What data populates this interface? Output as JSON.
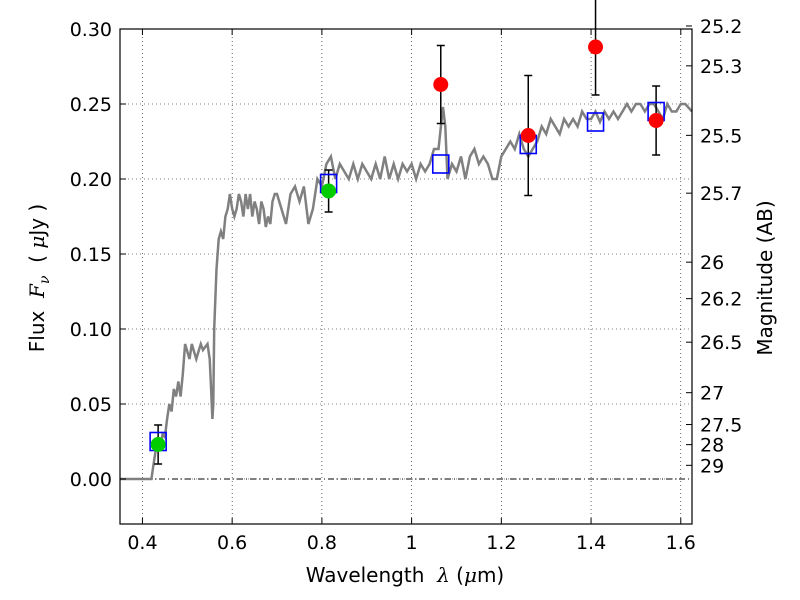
{
  "chart_data": {
    "type": "line",
    "xlabel_parts": [
      "Wavelength  ",
      "λ",
      " (",
      "μ",
      "m)"
    ],
    "ylabel_parts": [
      "Flux  ",
      "F",
      "ν",
      "  ( ",
      "μ",
      "Jy )"
    ],
    "y2label": "Magnitude (AB)",
    "xlim": [
      0.35,
      1.625
    ],
    "ylim": [
      -0.03,
      0.3
    ],
    "x_ticks": [
      0.4,
      0.6,
      0.8,
      1.0,
      1.2,
      1.4,
      1.6
    ],
    "x_tick_labels": [
      "0.4",
      "0.6",
      "0.8",
      "1",
      "1.2",
      "1.4",
      "1.6"
    ],
    "y_ticks": [
      0.0,
      0.05,
      0.1,
      0.15,
      0.2,
      0.25,
      0.3
    ],
    "y_tick_labels": [
      "0.00",
      "0.05",
      "0.10",
      "0.15",
      "0.20",
      "0.25",
      "0.30"
    ],
    "y2_ticks": [
      25.2,
      25.3,
      25.5,
      25.7,
      26,
      26.2,
      26.5,
      27,
      27.5,
      28,
      29
    ],
    "y2_tick_labels": [
      "25.2",
      "25.3",
      "25.5",
      "25.7",
      "26",
      "26.2",
      "26.5",
      "27",
      "27.5",
      "28",
      "29"
    ],
    "grid": true,
    "colors": {
      "spectrum": "#808080",
      "model_box": "#0000ff",
      "green_points": "#00cc00",
      "red_points": "#ff0000",
      "errorbar": "#000000",
      "zero_line": "#000000"
    },
    "series": [
      {
        "kind": "spectrum",
        "x": [
          0.35,
          0.42,
          0.425,
          0.43,
          0.435,
          0.44,
          0.445,
          0.45,
          0.455,
          0.46,
          0.465,
          0.47,
          0.475,
          0.48,
          0.485,
          0.49,
          0.495,
          0.5,
          0.505,
          0.51,
          0.515,
          0.52,
          0.525,
          0.53,
          0.535,
          0.54,
          0.545,
          0.55,
          0.553,
          0.556,
          0.558,
          0.56,
          0.565,
          0.57,
          0.575,
          0.58,
          0.585,
          0.59,
          0.595,
          0.6,
          0.605,
          0.61,
          0.615,
          0.62,
          0.625,
          0.63,
          0.635,
          0.64,
          0.645,
          0.65,
          0.655,
          0.66,
          0.665,
          0.67,
          0.675,
          0.68,
          0.685,
          0.69,
          0.695,
          0.7,
          0.71,
          0.72,
          0.73,
          0.74,
          0.75,
          0.76,
          0.77,
          0.78,
          0.79,
          0.8,
          0.81,
          0.82,
          0.83,
          0.84,
          0.85,
          0.86,
          0.87,
          0.88,
          0.89,
          0.9,
          0.91,
          0.92,
          0.93,
          0.94,
          0.95,
          0.96,
          0.97,
          0.98,
          0.99,
          1.0,
          1.01,
          1.02,
          1.03,
          1.04,
          1.05,
          1.06,
          1.07,
          1.075,
          1.08,
          1.09,
          1.1,
          1.11,
          1.12,
          1.13,
          1.14,
          1.15,
          1.16,
          1.17,
          1.18,
          1.19,
          1.2,
          1.21,
          1.22,
          1.23,
          1.24,
          1.25,
          1.26,
          1.27,
          1.28,
          1.29,
          1.3,
          1.31,
          1.32,
          1.33,
          1.34,
          1.35,
          1.36,
          1.37,
          1.38,
          1.39,
          1.4,
          1.41,
          1.42,
          1.43,
          1.44,
          1.45,
          1.46,
          1.47,
          1.48,
          1.49,
          1.5,
          1.51,
          1.52,
          1.53,
          1.54,
          1.55,
          1.56,
          1.57,
          1.58,
          1.59,
          1.6,
          1.61,
          1.625
        ],
        "y": [
          0.0,
          0.0,
          0.01,
          0.02,
          0.025,
          0.022,
          0.03,
          0.028,
          0.04,
          0.05,
          0.045,
          0.06,
          0.055,
          0.065,
          0.055,
          0.07,
          0.09,
          0.085,
          0.08,
          0.09,
          0.085,
          0.08,
          0.085,
          0.09,
          0.086,
          0.088,
          0.09,
          0.08,
          0.06,
          0.04,
          0.05,
          0.1,
          0.14,
          0.16,
          0.165,
          0.16,
          0.175,
          0.18,
          0.19,
          0.18,
          0.175,
          0.18,
          0.19,
          0.185,
          0.175,
          0.19,
          0.18,
          0.19,
          0.175,
          0.185,
          0.18,
          0.17,
          0.185,
          0.18,
          0.168,
          0.175,
          0.17,
          0.185,
          0.19,
          0.19,
          0.18,
          0.17,
          0.19,
          0.195,
          0.185,
          0.195,
          0.17,
          0.18,
          0.2,
          0.195,
          0.21,
          0.215,
          0.2,
          0.21,
          0.205,
          0.2,
          0.21,
          0.2,
          0.21,
          0.205,
          0.2,
          0.21,
          0.2,
          0.215,
          0.2,
          0.21,
          0.2,
          0.21,
          0.205,
          0.21,
          0.2,
          0.21,
          0.205,
          0.21,
          0.22,
          0.22,
          0.248,
          0.235,
          0.2,
          0.21,
          0.205,
          0.215,
          0.2,
          0.215,
          0.22,
          0.21,
          0.215,
          0.21,
          0.2,
          0.2,
          0.215,
          0.22,
          0.225,
          0.22,
          0.23,
          0.22,
          0.215,
          0.22,
          0.225,
          0.235,
          0.23,
          0.24,
          0.235,
          0.23,
          0.24,
          0.235,
          0.24,
          0.235,
          0.245,
          0.24,
          0.24,
          0.245,
          0.238,
          0.245,
          0.24,
          0.245,
          0.24,
          0.245,
          0.25,
          0.245,
          0.25,
          0.25,
          0.245,
          0.25,
          0.25,
          0.245,
          0.24,
          0.25,
          0.245,
          0.245,
          0.25,
          0.25,
          0.245
        ]
      },
      {
        "kind": "model_boxes",
        "x": [
          0.435,
          0.815,
          1.065,
          1.26,
          1.41,
          1.545
        ],
        "y": [
          0.025,
          0.197,
          0.21,
          0.223,
          0.238,
          0.245
        ]
      },
      {
        "kind": "green_points",
        "x": [
          0.435,
          0.815
        ],
        "y": [
          0.023,
          0.192
        ],
        "yerr": [
          0.013,
          0.014
        ]
      },
      {
        "kind": "red_points",
        "x": [
          1.065,
          1.26,
          1.41,
          1.545
        ],
        "y": [
          0.263,
          0.229,
          0.288,
          0.239
        ],
        "yerr": [
          0.026,
          0.04,
          0.032,
          0.023
        ]
      }
    ]
  }
}
